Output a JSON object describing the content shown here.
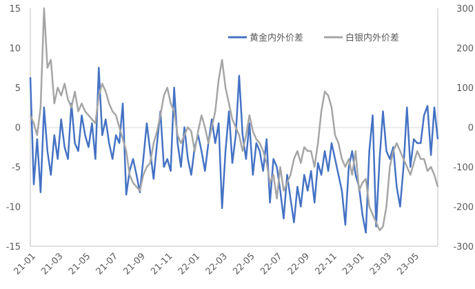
{
  "chart_data": {
    "type": "line",
    "title": "",
    "xlabel": "",
    "ylabel": "",
    "x_tick_labels": [
      "21-01",
      "21-03",
      "21-05",
      "21-07",
      "21-09",
      "21-11",
      "22-01",
      "22-03",
      "22-05",
      "22-07",
      "22-09",
      "22-11",
      "23-01",
      "23-03",
      "23-05"
    ],
    "x_range": [
      "2021-01",
      "2023-06"
    ],
    "ylim_left": [
      -15,
      15
    ],
    "yticks_left": [
      15,
      10,
      5,
      0,
      -5,
      -10,
      -15
    ],
    "ylim_right": [
      -300,
      300
    ],
    "yticks_right": [
      300,
      200,
      100,
      0,
      -100,
      -200,
      -300
    ],
    "grid": false,
    "legend_position": "top-right",
    "series": [
      {
        "name": "黄金内外价差",
        "axis": "left",
        "color": "#4472C4",
        "months": [
          0,
          0.25,
          0.5,
          0.75,
          1,
          1.25,
          1.5,
          1.75,
          2,
          2.25,
          2.5,
          2.75,
          3,
          3.25,
          3.5,
          3.75,
          4,
          4.25,
          4.5,
          4.75,
          5,
          5.25,
          5.5,
          5.75,
          6,
          6.25,
          6.5,
          6.75,
          7,
          7.25,
          7.5,
          7.75,
          8,
          8.25,
          8.5,
          8.75,
          9,
          9.25,
          9.5,
          9.75,
          10,
          10.25,
          10.5,
          10.75,
          11,
          11.25,
          11.5,
          11.75,
          12,
          12.25,
          12.5,
          12.75,
          13,
          13.25,
          13.5,
          13.75,
          14,
          14.25,
          14.5,
          14.75,
          15,
          15.25,
          15.5,
          15.75,
          16,
          16.25,
          16.5,
          16.75,
          17,
          17.25,
          17.5,
          17.75,
          18,
          18.25,
          18.5,
          18.75,
          19,
          19.25,
          19.5,
          19.75,
          20,
          20.25,
          20.5,
          20.75,
          21,
          21.25,
          21.5,
          21.75,
          22,
          22.25,
          22.5,
          22.75,
          23,
          23.25,
          23.5,
          23.75,
          24,
          24.25,
          24.5,
          24.75,
          25,
          25.25,
          25.5,
          25.75,
          26,
          26.25,
          26.5,
          26.75,
          27,
          27.25,
          27.5,
          27.75,
          28,
          28.25,
          28.5,
          28.75,
          29,
          29.25,
          29.5,
          29.75
        ],
        "values": [
          6.3,
          -7.2,
          -1.5,
          -8.2,
          2.5,
          -3.0,
          -6.0,
          -1.0,
          -4.0,
          1.0,
          -2.5,
          -4.0,
          3.0,
          -2.0,
          -3.0,
          1.5,
          -1.0,
          -2.5,
          0.5,
          -4.0,
          7.5,
          -1.0,
          1.0,
          -2.0,
          -4.0,
          -1.0,
          -2.0,
          3.0,
          -8.5,
          -5.5,
          -4.0,
          -6.0,
          -8.2,
          -4.0,
          0.5,
          -3.0,
          -6.5,
          -2.0,
          2.0,
          -5.0,
          -4.0,
          -5.5,
          5.0,
          -2.0,
          -5.0,
          0.0,
          -4.0,
          -6.0,
          -2.5,
          -1.0,
          -3.0,
          -5.5,
          -2.0,
          1.0,
          -2.0,
          0.5,
          -10.2,
          -3.0,
          2.0,
          -4.5,
          -1.0,
          6.5,
          -1.0,
          -4.0,
          0.5,
          -6.0,
          -2.0,
          -3.0,
          -5.5,
          -1.5,
          -9.5,
          -4.0,
          -5.0,
          -8.0,
          -11.5,
          -6.0,
          -9.0,
          -12.0,
          -7.5,
          -10.0,
          -6.0,
          -8.0,
          -5.5,
          -9.5,
          -4.5,
          -6.0,
          -3.0,
          -5.5,
          -2.0,
          -4.0,
          -6.0,
          -8.0,
          -12.3,
          -5.0,
          -3.0,
          -6.0,
          -7.5,
          -11.0,
          -13.3,
          -3.0,
          1.5,
          -12.5,
          -4.0,
          2.0,
          -3.0,
          -4.0,
          -2.5,
          -7.5,
          -10.0,
          -5.0,
          2.5,
          -5.0,
          -1.5,
          -2.0,
          -2.0,
          1.5,
          2.7,
          -3.5,
          2.5,
          -1.5
        ]
      },
      {
        "name": "白银内外价差",
        "axis": "right",
        "color": "#A5A5A5",
        "months": [
          0,
          0.25,
          0.5,
          0.75,
          1,
          1.25,
          1.5,
          1.75,
          2,
          2.25,
          2.5,
          2.75,
          3,
          3.25,
          3.5,
          3.75,
          4,
          4.25,
          4.5,
          4.75,
          5,
          5.25,
          5.5,
          5.75,
          6,
          6.25,
          6.5,
          6.75,
          7,
          7.25,
          7.5,
          7.75,
          8,
          8.25,
          8.5,
          8.75,
          9,
          9.25,
          9.5,
          9.75,
          10,
          10.25,
          10.5,
          10.75,
          11,
          11.25,
          11.5,
          11.75,
          12,
          12.25,
          12.5,
          12.75,
          13,
          13.25,
          13.5,
          13.75,
          14,
          14.25,
          14.5,
          14.75,
          15,
          15.25,
          15.5,
          15.75,
          16,
          16.25,
          16.5,
          16.75,
          17,
          17.25,
          17.5,
          17.75,
          18,
          18.25,
          18.5,
          18.75,
          19,
          19.25,
          19.5,
          19.75,
          20,
          20.25,
          20.5,
          20.75,
          21,
          21.25,
          21.5,
          21.75,
          22,
          22.25,
          22.5,
          22.75,
          23,
          23.25,
          23.5,
          23.75,
          24,
          24.25,
          24.5,
          24.75,
          25,
          25.25,
          25.5,
          25.75,
          26,
          26.25,
          26.5,
          26.75,
          27,
          27.25,
          27.5,
          27.75,
          28,
          28.25,
          28.5,
          28.75,
          29,
          29.25,
          29.5,
          29.75
        ],
        "values": [
          30,
          10,
          -20,
          50,
          300,
          150,
          170,
          60,
          100,
          80,
          110,
          70,
          50,
          90,
          40,
          60,
          40,
          30,
          20,
          10,
          80,
          110,
          90,
          60,
          40,
          30,
          0,
          -30,
          -60,
          -120,
          -140,
          -150,
          -160,
          -120,
          -100,
          -90,
          -40,
          -10,
          30,
          80,
          100,
          60,
          40,
          -20,
          -40,
          -20,
          0,
          -10,
          -60,
          -10,
          30,
          0,
          -40,
          0,
          40,
          120,
          170,
          100,
          60,
          20,
          0,
          -20,
          -60,
          -20,
          30,
          -10,
          -30,
          -40,
          -60,
          -90,
          -140,
          -120,
          -180,
          -100,
          -160,
          -140,
          -120,
          -80,
          -60,
          -90,
          -50,
          -60,
          -60,
          -100,
          -40,
          40,
          90,
          80,
          50,
          -20,
          -40,
          -80,
          -100,
          -80,
          -120,
          -60,
          -160,
          -140,
          -130,
          -200,
          -220,
          -240,
          -260,
          -250,
          -200,
          -100,
          -60,
          -40,
          -60,
          -80,
          -100,
          -120,
          -90,
          -60,
          -80,
          -80,
          -110,
          -100,
          -120,
          -150
        ]
      }
    ]
  }
}
